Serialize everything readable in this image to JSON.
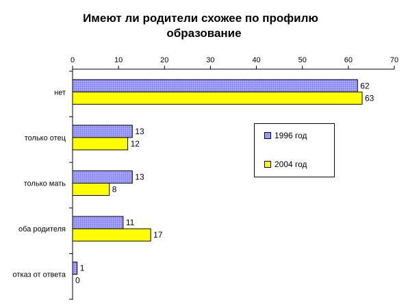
{
  "chart_data": {
    "type": "bar",
    "orientation": "horizontal",
    "title_lines": [
      "Имеют ли родители схожее по профилю",
      "образование"
    ],
    "categories": [
      "нет",
      "только отец",
      "только мать",
      "оба родителя",
      "отказ от ответа"
    ],
    "series": [
      {
        "name": "1996 год",
        "values": [
          62,
          13,
          13,
          11,
          1
        ],
        "labels": [
          "62",
          "13",
          "13",
          "11",
          "1"
        ],
        "color": "#9999ff",
        "pattern": "dotted"
      },
      {
        "name": "2004 год",
        "values": [
          63,
          12,
          8,
          17,
          0
        ],
        "labels": [
          "63",
          "12",
          "8",
          "17",
          "0"
        ],
        "color": "#ffff00",
        "pattern": "solid"
      }
    ],
    "xlim": [
      0,
      70
    ],
    "xticks": [
      0,
      10,
      20,
      30,
      40,
      50,
      60,
      70
    ],
    "xtick_labels": [
      "0",
      "10",
      "20",
      "30",
      "40",
      "50",
      "60",
      "70"
    ],
    "x_axis_position": "top",
    "grid": false,
    "legend_position": "right-center"
  }
}
